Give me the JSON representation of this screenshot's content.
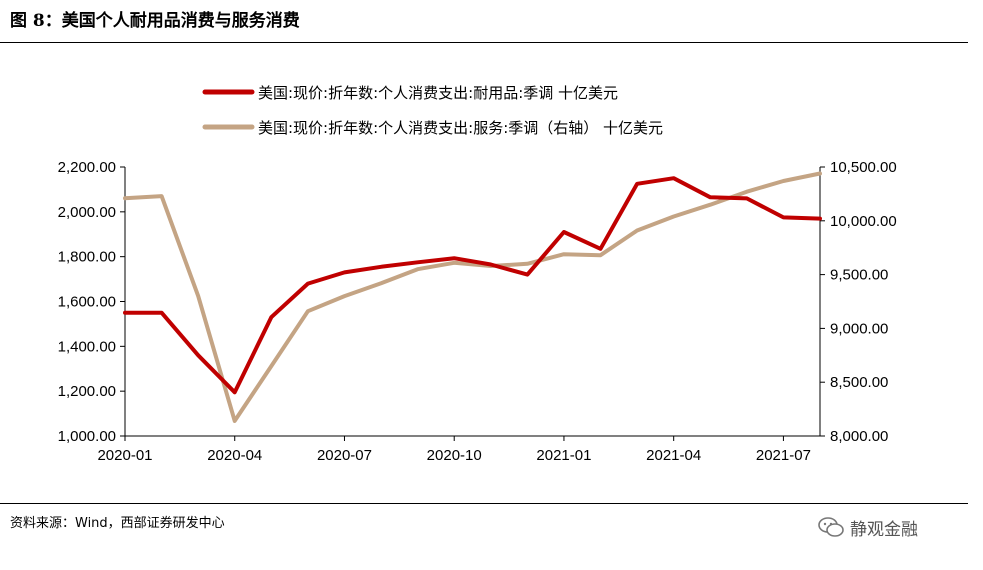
{
  "header": {
    "title": "图 8：美国个人耐用品消费与服务消费"
  },
  "footer": {
    "source": "资料来源：Wind，西部证券研发中心",
    "watermark": "静观金融"
  },
  "colors": {
    "durables": "#c00000",
    "services": "#c4a484"
  },
  "chart_data": {
    "type": "line",
    "x": [
      "2020-01",
      "2020-02",
      "2020-03",
      "2020-04",
      "2020-05",
      "2020-06",
      "2020-07",
      "2020-08",
      "2020-09",
      "2020-10",
      "2020-11",
      "2020-12",
      "2021-01",
      "2021-02",
      "2021-03",
      "2021-04",
      "2021-05",
      "2021-06",
      "2021-07",
      "2021-08"
    ],
    "xticks": [
      "2020-01",
      "2020-04",
      "2020-07",
      "2020-10",
      "2021-01",
      "2021-04",
      "2021-07"
    ],
    "y_left": {
      "range": [
        1000,
        2200
      ],
      "ticks": [
        "1,000.00",
        "1,200.00",
        "1,400.00",
        "1,600.00",
        "1,800.00",
        "2,000.00",
        "2,200.00"
      ]
    },
    "y_right": {
      "range": [
        8000,
        10500
      ],
      "ticks": [
        "8,000.00",
        "8,500.00",
        "9,000.00",
        "9,500.00",
        "10,000.00",
        "10,500.00"
      ]
    },
    "legend_position": "top",
    "series": [
      {
        "name": "美国:现价:折年数:个人消费支出:耐用品:季调 十亿美元",
        "axis": "left",
        "values": [
          1550,
          1550,
          1360,
          1195,
          1530,
          1680,
          1730,
          1755,
          1775,
          1793,
          1765,
          1720,
          1910,
          1835,
          2125,
          2150,
          2065,
          2060,
          1975,
          1970
        ]
      },
      {
        "name": "美国:现价:折年数:个人消费支出:服务:季调（右轴） 十亿美元",
        "axis": "right",
        "values": [
          10210,
          10230,
          9300,
          8140,
          8650,
          9160,
          9300,
          9420,
          9550,
          9610,
          9580,
          9600,
          9690,
          9680,
          9910,
          10040,
          10150,
          10270,
          10370,
          10440
        ]
      }
    ]
  }
}
